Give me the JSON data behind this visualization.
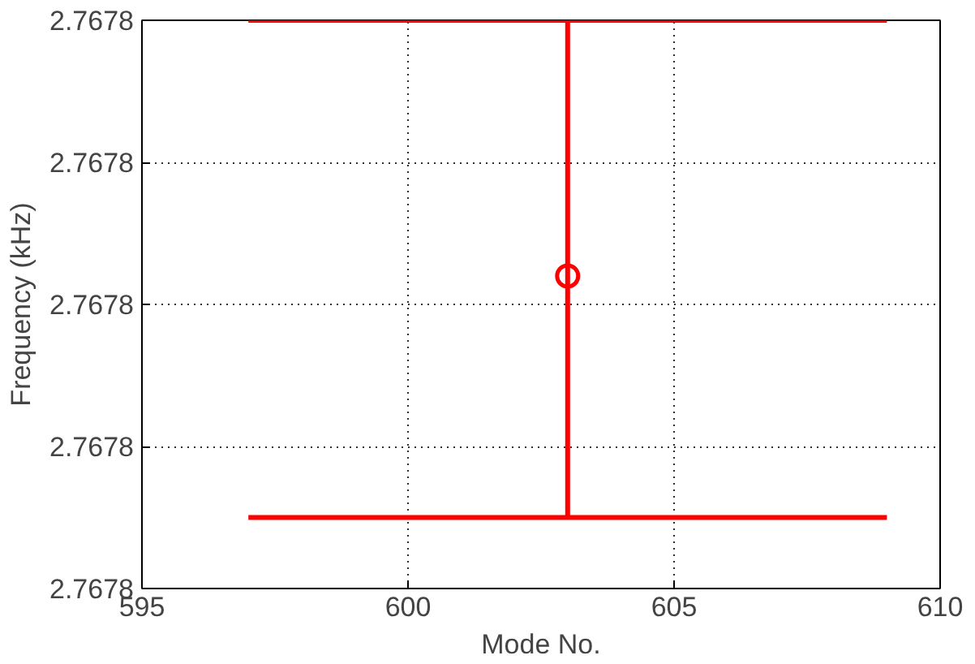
{
  "chart_data": {
    "type": "scatter",
    "xlabel": "Mode No.",
    "ylabel": "Frequency (kHz)",
    "x": [
      603
    ],
    "values": [
      2.767804
    ],
    "errors": [
      [
        2.76777,
        2.76784
      ]
    ],
    "color": "#ff0000",
    "xlim": [
      595,
      610
    ],
    "xticks": [
      595,
      600,
      605,
      610
    ],
    "ylim": [
      2.76776,
      2.76784
    ],
    "yticks": [
      {
        "value": 2.76776,
        "label": "2.7678"
      },
      {
        "value": 2.76778,
        "label": "2.7678"
      },
      {
        "value": 2.7678,
        "label": "2.7678"
      },
      {
        "value": 2.76782,
        "label": "2.7678"
      },
      {
        "value": 2.76784,
        "label": "2.7678"
      }
    ],
    "grid": true,
    "marker": "circle"
  }
}
